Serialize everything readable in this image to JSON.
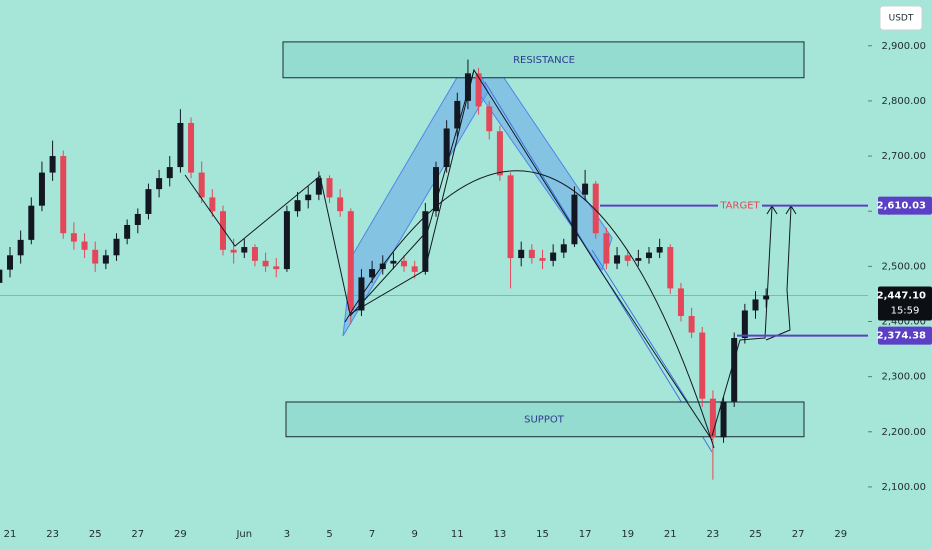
{
  "chart_data": {
    "type": "candlestick",
    "currency": "USDT",
    "up_color": "#131722",
    "down_color": "#e2485a",
    "categories": [
      null,
      "21",
      null,
      null,
      null,
      "23",
      null,
      null,
      null,
      "25",
      null,
      null,
      null,
      "27",
      null,
      null,
      null,
      "29",
      null,
      null,
      null,
      null,
      null,
      "Jun",
      null,
      null,
      null,
      "3",
      null,
      null,
      null,
      "5",
      null,
      null,
      null,
      "7",
      null,
      null,
      null,
      "9",
      null,
      null,
      null,
      "11",
      null,
      null,
      null,
      "13",
      null,
      null,
      null,
      "15",
      null,
      null,
      null,
      "17",
      null,
      null,
      null,
      "19",
      null,
      null,
      null,
      "21",
      null,
      null,
      null,
      "23",
      null,
      null,
      null,
      "25",
      null,
      null,
      null,
      "27",
      null,
      null,
      null,
      "29",
      null,
      null
    ],
    "open": [
      2470,
      2494,
      2520,
      2548,
      2610,
      2670,
      2700,
      2560,
      2545,
      2530,
      2505,
      2520,
      2550,
      2575,
      2595,
      2640,
      2660,
      2680,
      2760,
      2670,
      2625,
      2600,
      2530,
      2525,
      2535,
      2510,
      2500,
      2495,
      2600,
      2620,
      2630,
      2660,
      2625,
      2600,
      2420,
      2480,
      2495,
      2505,
      2510,
      2500,
      2490,
      2600,
      2680,
      2750,
      2800,
      2850,
      2790,
      2745,
      2665,
      2515,
      2530,
      2515,
      2510,
      2525,
      2540,
      2630,
      2650,
      2560,
      2505,
      2520,
      2510,
      2515,
      2525,
      2535,
      2460,
      2410,
      2380,
      2260,
      2190,
      2255,
      2370,
      2420,
      2440,
      null,
      null,
      null,
      null,
      null,
      null,
      null,
      null,
      null
    ],
    "high": [
      2505,
      2535,
      2565,
      2625,
      2690,
      2728,
      2710,
      2580,
      2560,
      2545,
      2530,
      2560,
      2585,
      2605,
      2650,
      2675,
      2700,
      2785,
      2770,
      2690,
      2640,
      2610,
      2550,
      2550,
      2540,
      2525,
      2515,
      2610,
      2635,
      2645,
      2672,
      2665,
      2640,
      2605,
      2495,
      2510,
      2520,
      2525,
      2520,
      2510,
      2615,
      2690,
      2765,
      2815,
      2875,
      2860,
      2800,
      2755,
      2670,
      2545,
      2540,
      2530,
      2540,
      2550,
      2645,
      2675,
      2655,
      2570,
      2535,
      2530,
      2530,
      2535,
      2550,
      2540,
      2470,
      2425,
      2390,
      2275,
      2265,
      2380,
      2432,
      2455,
      2460,
      null,
      null,
      null,
      null,
      null,
      null,
      null,
      null,
      null
    ],
    "low": [
      2460,
      2480,
      2505,
      2540,
      2600,
      2655,
      2550,
      2530,
      2515,
      2490,
      2495,
      2510,
      2540,
      2560,
      2585,
      2625,
      2645,
      2670,
      2660,
      2615,
      2590,
      2520,
      2505,
      2515,
      2500,
      2490,
      2480,
      2490,
      2590,
      2605,
      2620,
      2615,
      2590,
      2395,
      2410,
      2470,
      2485,
      2495,
      2490,
      2478,
      2485,
      2590,
      2670,
      2735,
      2785,
      2775,
      2730,
      2655,
      2460,
      2500,
      2505,
      2495,
      2500,
      2515,
      2535,
      2620,
      2550,
      2495,
      2495,
      2500,
      2500,
      2505,
      2515,
      2450,
      2400,
      2370,
      2245,
      2113,
      2180,
      2245,
      2360,
      2405,
      2425,
      null,
      null,
      null,
      null,
      null,
      null,
      null,
      null,
      null
    ],
    "close": [
      2494,
      2520,
      2548,
      2610,
      2670,
      2700,
      2560,
      2545,
      2530,
      2505,
      2520,
      2550,
      2575,
      2595,
      2640,
      2660,
      2680,
      2760,
      2670,
      2625,
      2600,
      2530,
      2525,
      2535,
      2510,
      2500,
      2495,
      2600,
      2620,
      2630,
      2660,
      2625,
      2600,
      2420,
      2480,
      2495,
      2505,
      2510,
      2500,
      2490,
      2600,
      2680,
      2750,
      2800,
      2850,
      2790,
      2745,
      2665,
      2515,
      2530,
      2515,
      2510,
      2525,
      2540,
      2630,
      2650,
      2560,
      2505,
      2520,
      2510,
      2515,
      2525,
      2535,
      2460,
      2410,
      2380,
      2260,
      2190,
      2255,
      2370,
      2420,
      2440,
      2447.1,
      null,
      null,
      null,
      null,
      null,
      null,
      null,
      null,
      null
    ],
    "ylim": [
      2040,
      2983
    ],
    "yticks": [
      {
        "value": 2100,
        "label": "2,100.00"
      },
      {
        "value": 2200,
        "label": "2,200.00"
      },
      {
        "value": 2300,
        "label": "2,300.00"
      },
      {
        "value": 2400,
        "label": "2,400.00"
      },
      {
        "value": 2500,
        "label": "2,500.00"
      },
      {
        "value": 2600,
        "label": "2,600.00"
      },
      {
        "value": 2700,
        "label": "2,700.00"
      },
      {
        "value": 2800,
        "label": "2,800.00"
      },
      {
        "value": 2900,
        "label": "2,900.00"
      }
    ],
    "zones": [
      {
        "label": "RESISTANCE",
        "from": 2842,
        "to": 2907
      },
      {
        "label": "SUPPOT",
        "from": 2191,
        "to": 2254
      }
    ],
    "levels": [
      {
        "name": "TARGET",
        "value": 2610.03,
        "label": "2,610.03",
        "color": "#5b3fc4"
      },
      {
        "value": 2374.38,
        "label": "2,374.38",
        "color": "#5b3fc4"
      }
    ],
    "last_price": {
      "value": 2447.1,
      "label": "2,447.10",
      "countdown": "15:59"
    }
  }
}
